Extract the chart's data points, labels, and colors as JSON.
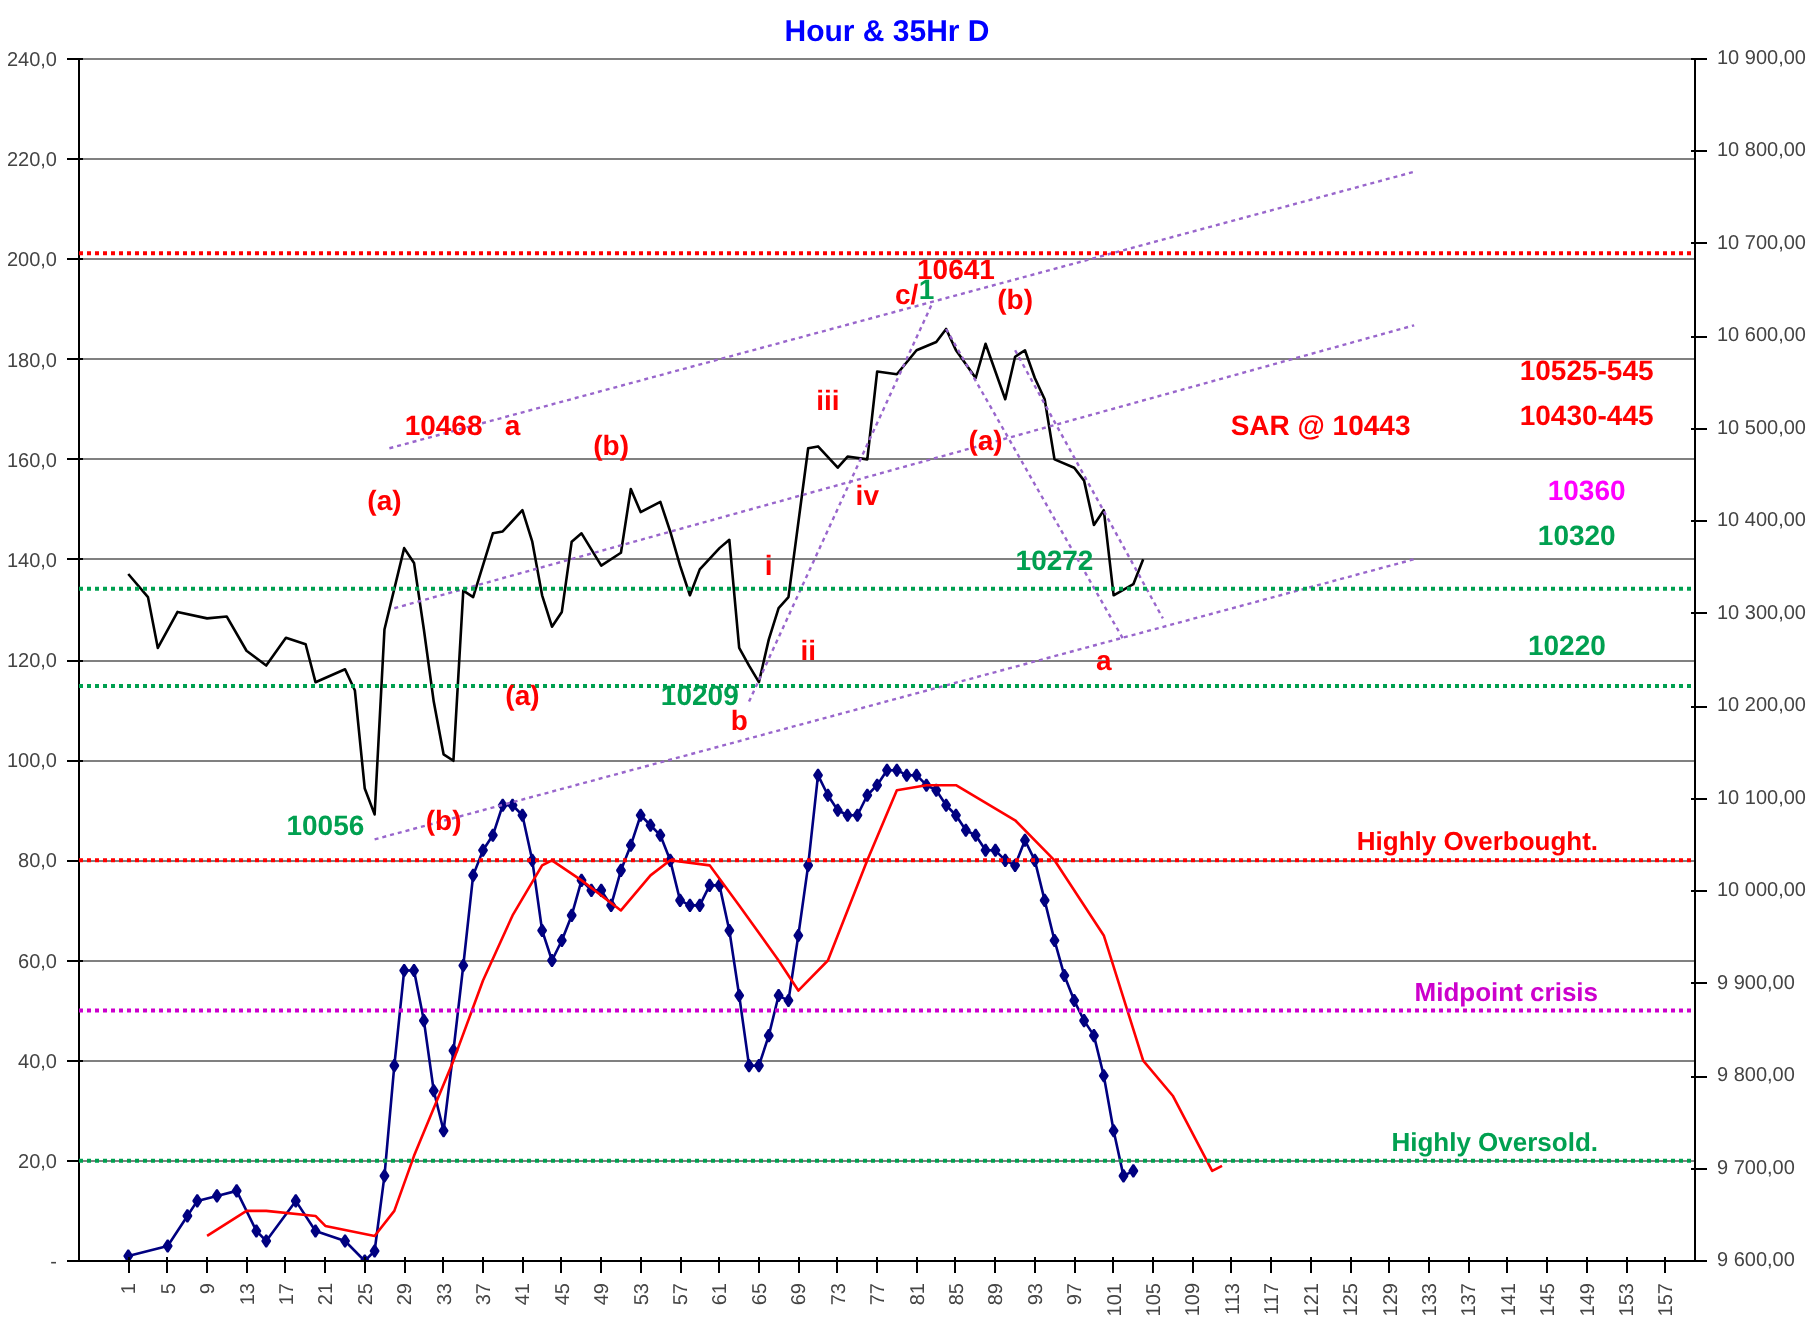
{
  "chart_data": {
    "type": "line",
    "title": "Hour & 35Hr D",
    "xlim": [
      -4,
      160
    ],
    "xticks": [
      1,
      5,
      9,
      13,
      17,
      21,
      25,
      29,
      33,
      37,
      41,
      45,
      49,
      53,
      57,
      61,
      65,
      69,
      73,
      77,
      81,
      85,
      89,
      93,
      97,
      101,
      105,
      109,
      113,
      117,
      121,
      125,
      129,
      133,
      137,
      141,
      145,
      149,
      153,
      157
    ],
    "ylim": [
      0,
      240
    ],
    "yticks": [
      {
        "value": 0,
        "label": "-"
      },
      {
        "value": 20,
        "label": "20,0"
      },
      {
        "value": 40,
        "label": "40,0"
      },
      {
        "value": 60,
        "label": "60,0"
      },
      {
        "value": 80,
        "label": "80,0"
      },
      {
        "value": 100,
        "label": "100,0"
      },
      {
        "value": 120,
        "label": "120,0"
      },
      {
        "value": 140,
        "label": "140,0"
      },
      {
        "value": 160,
        "label": "160,0"
      },
      {
        "value": 180,
        "label": "180,0"
      },
      {
        "value": 200,
        "label": "200,0"
      },
      {
        "value": 220,
        "label": "220,0"
      },
      {
        "value": 240,
        "label": "240,0"
      }
    ],
    "y2lim": [
      9600,
      10900
    ],
    "y2ticks": [
      {
        "value": 9600,
        "label": "9 600,00"
      },
      {
        "value": 9700,
        "label": "9 700,00"
      },
      {
        "value": 9800,
        "label": "9 800,00"
      },
      {
        "value": 9900,
        "label": "9 900,00"
      },
      {
        "value": 10000,
        "label": "10 000,00"
      },
      {
        "value": 10100,
        "label": "10 100,00"
      },
      {
        "value": 10200,
        "label": "10 200,00"
      },
      {
        "value": 10300,
        "label": "10 300,00"
      },
      {
        "value": 10400,
        "label": "10 400,00"
      },
      {
        "value": 10500,
        "label": "10 500,00"
      },
      {
        "value": 10600,
        "label": "10 600,00"
      },
      {
        "value": 10700,
        "label": "10 700,00"
      },
      {
        "value": 10800,
        "label": "10 800,00"
      },
      {
        "value": 10900,
        "label": "10 900,00"
      }
    ],
    "grid": "y",
    "series": [
      {
        "axis": "y2",
        "color": "#000000",
        "marker": "none",
        "line_style": "solid",
        "x": [
          1,
          3,
          4,
          6,
          9,
          11,
          13,
          15,
          17,
          19,
          20,
          23,
          24,
          25,
          26,
          27,
          29,
          30,
          31,
          32,
          33,
          34,
          35,
          36,
          38,
          39,
          41,
          42,
          43,
          44,
          45,
          46,
          47,
          49,
          51,
          52,
          53,
          55,
          56,
          57,
          58,
          59,
          61,
          62,
          63,
          64,
          65,
          66,
          67,
          68,
          70,
          71,
          73,
          74,
          76,
          77,
          79,
          81,
          83,
          84,
          85,
          87,
          88,
          90,
          91,
          92,
          93,
          94,
          95,
          97,
          98,
          99,
          100,
          101,
          103,
          104
        ],
        "values": [
          10343,
          10318,
          10263,
          10302,
          10295,
          10297,
          10260,
          10244,
          10274,
          10267,
          10226,
          10240,
          10217,
          10111,
          10083,
          10283,
          10371,
          10355,
          10283,
          10205,
          10148,
          10141,
          10325,
          10318,
          10387,
          10389,
          10412,
          10378,
          10320,
          10286,
          10302,
          10378,
          10387,
          10352,
          10366,
          10435,
          10410,
          10421,
          10389,
          10352,
          10320,
          10348,
          10371,
          10380,
          10263,
          10244,
          10226,
          10272,
          10306,
          10318,
          10479,
          10481,
          10458,
          10470,
          10467,
          10562,
          10559,
          10585,
          10594,
          10608,
          10585,
          10555,
          10592,
          10532,
          10578,
          10585,
          10555,
          10532,
          10467,
          10458,
          10444,
          10396,
          10412,
          10320,
          10332,
          10359
        ]
      },
      {
        "axis": "y",
        "color": "#000080",
        "marker": "diamond",
        "line_style": "solid",
        "x": [
          1,
          5,
          7,
          8,
          10,
          12,
          14,
          15,
          18,
          20,
          23,
          25,
          26,
          27,
          28,
          29,
          30,
          31,
          32,
          33,
          34,
          35,
          36,
          37,
          38,
          39,
          40,
          41,
          42,
          43,
          44,
          45,
          46,
          47,
          48,
          49,
          50,
          51,
          52,
          53,
          54,
          55,
          56,
          57,
          58,
          59,
          60,
          61,
          62,
          63,
          64,
          65,
          66,
          67,
          68,
          69,
          70,
          71,
          72,
          73,
          74,
          75,
          76,
          77,
          78,
          79,
          80,
          81,
          82,
          83,
          84,
          85,
          86,
          87,
          88,
          89,
          90,
          91,
          92,
          93,
          94,
          95,
          96,
          97,
          98,
          99,
          100,
          101,
          102,
          103
        ],
        "values": [
          1,
          3,
          9,
          12,
          13,
          14,
          6,
          4,
          12,
          6,
          4,
          0,
          2,
          17,
          39,
          58,
          58,
          48,
          34,
          26,
          42,
          59,
          77,
          82,
          85,
          91,
          91,
          89,
          80,
          66,
          60,
          64,
          69,
          76,
          74,
          74,
          71,
          78,
          83,
          89,
          87,
          85,
          80,
          72,
          71,
          71,
          75,
          75,
          66,
          53,
          39,
          39,
          45,
          53,
          52,
          65,
          79,
          97,
          93,
          90,
          89,
          89,
          93,
          95,
          98,
          98,
          97,
          97,
          95,
          94,
          91,
          89,
          86,
          85,
          82,
          82,
          80,
          79,
          84,
          80,
          72,
          64,
          57,
          52,
          48,
          45,
          37,
          26,
          17,
          18
        ]
      },
      {
        "axis": "y",
        "color": "#ff0000",
        "marker": "none",
        "line_style": "solid",
        "x": [
          9,
          13,
          15,
          20,
          21,
          26,
          28,
          30,
          34,
          37,
          40,
          43,
          44,
          47,
          51,
          54,
          56,
          60,
          63,
          67,
          69,
          72,
          76,
          79,
          82,
          85,
          91,
          95,
          100,
          104,
          107,
          111,
          112
        ],
        "values": [
          5,
          10,
          10,
          9,
          7,
          5,
          10,
          21,
          40,
          56,
          69,
          79,
          80,
          76,
          70,
          77,
          80,
          79,
          71,
          60,
          54,
          60,
          80,
          94,
          95,
          95,
          88,
          80,
          65,
          40,
          33,
          18,
          19
        ]
      },
      {
        "type": "line",
        "axis": "y2",
        "color": "#9966cc",
        "marker": "none",
        "line_style": "dotted",
        "x": [
          27.5,
          131.5
        ],
        "values": [
          10479,
          10778
        ]
      },
      {
        "type": "line",
        "axis": "y2",
        "color": "#9966cc",
        "marker": "none",
        "line_style": "dotted",
        "x": [
          28,
          131.5
        ],
        "values": [
          10306,
          10612
        ]
      },
      {
        "type": "line",
        "axis": "y2",
        "color": "#9966cc",
        "marker": "none",
        "line_style": "dotted",
        "x": [
          26,
          131.5
        ],
        "values": [
          10056,
          10359
        ]
      },
      {
        "type": "line",
        "axis": "y2",
        "color": "#9966cc",
        "marker": "none",
        "line_style": "dotted",
        "x": [
          64,
          82.6
        ],
        "values": [
          10205,
          10636
        ]
      },
      {
        "type": "line",
        "axis": "y2",
        "color": "#9966cc",
        "marker": "none",
        "line_style": "dotted",
        "x": [
          84,
          102
        ],
        "values": [
          10608,
          10272
        ]
      },
      {
        "type": "line",
        "axis": "y2",
        "color": "#9966cc",
        "marker": "none",
        "line_style": "dotted",
        "x": [
          91,
          106
        ],
        "values": [
          10585,
          10295
        ]
      }
    ],
    "ref_lines": [
      {
        "axis": "y2",
        "value": 10690,
        "color": "#ff0000",
        "line_style": "dotted"
      },
      {
        "axis": "y2",
        "value": 10327,
        "color": "#00a050",
        "line_style": "dotted"
      },
      {
        "axis": "y2",
        "value": 10222,
        "color": "#00a050",
        "line_style": "dotted"
      },
      {
        "axis": "y",
        "value": 80,
        "label": "Highly Overbought.",
        "color": "#ff0000",
        "line_style": "dotted"
      },
      {
        "axis": "y",
        "value": 50,
        "label": "Midpoint crisis",
        "color": "#cc00cc",
        "line_style": "dotted"
      },
      {
        "axis": "y",
        "value": 20,
        "label": "Highly Oversold.",
        "color": "#00a050",
        "line_style": "dotted"
      }
    ],
    "annotations": [
      "10641",
      "c/",
      "1",
      "(b)",
      "10468",
      "a",
      "(a)",
      "(b)",
      "iii",
      "iv",
      "(a)",
      "SAR @ 10443",
      "10525-545",
      "10430-445",
      "10360",
      "10320",
      "10220",
      "10272",
      "a",
      "i",
      "ii",
      "(a)",
      "10209",
      "b",
      "10056",
      "(b)"
    ]
  }
}
